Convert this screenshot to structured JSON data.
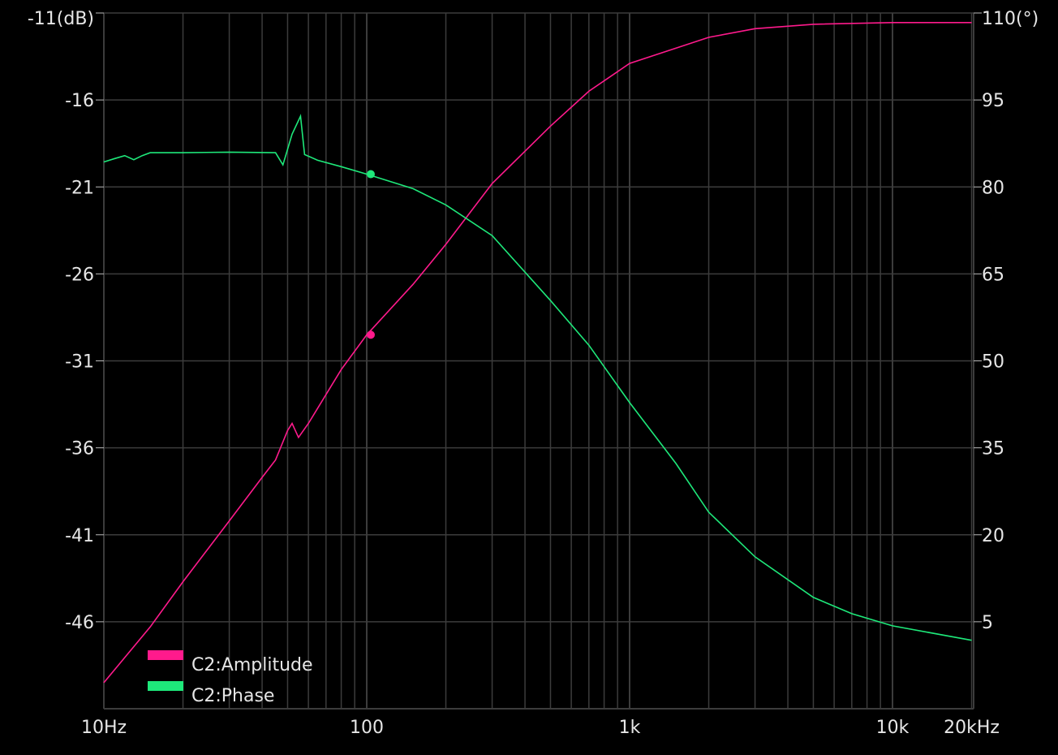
{
  "chart_data": {
    "type": "line",
    "title": "",
    "x_scale": "log",
    "xlim": [
      10,
      20000
    ],
    "x_ticks": [
      {
        "value": 10,
        "label": "10Hz"
      },
      {
        "value": 100,
        "label": "100"
      },
      {
        "value": 1000,
        "label": "1k"
      },
      {
        "value": 10000,
        "label": "10k"
      },
      {
        "value": 20000,
        "label": "20kHz"
      }
    ],
    "y_left": {
      "ylim": [
        -51,
        -11
      ],
      "ticks": [
        {
          "value": -11,
          "label": "-11(dB)"
        },
        {
          "value": -16,
          "label": "-16"
        },
        {
          "value": -21,
          "label": "-21"
        },
        {
          "value": -26,
          "label": "-26"
        },
        {
          "value": -31,
          "label": "-31"
        },
        {
          "value": -36,
          "label": "-36"
        },
        {
          "value": -41,
          "label": "-41"
        },
        {
          "value": -46,
          "label": "-46"
        }
      ]
    },
    "y_right": {
      "ylim": [
        -10,
        110
      ],
      "ticks": [
        {
          "value": 110,
          "label": "110(°)"
        },
        {
          "value": 95,
          "label": "95"
        },
        {
          "value": 80,
          "label": "80"
        },
        {
          "value": 65,
          "label": "65"
        },
        {
          "value": 50,
          "label": "50"
        },
        {
          "value": 35,
          "label": "35"
        },
        {
          "value": 20,
          "label": "20"
        },
        {
          "value": 5,
          "label": "5"
        }
      ]
    },
    "grid": true,
    "legend_placement": "bottom-left",
    "series": [
      {
        "name": "C2:Amplitude",
        "axis": "left",
        "color": "#ff1a8c",
        "x": [
          10,
          15,
          20,
          30,
          40,
          45,
          50,
          52,
          55,
          60,
          80,
          100,
          150,
          200,
          300,
          500,
          700,
          1000,
          2000,
          3000,
          5000,
          10000,
          20000
        ],
        "y": [
          -49.5,
          -46.3,
          -43.7,
          -40.2,
          -37.7,
          -36.7,
          -35.0,
          -34.6,
          -35.4,
          -34.6,
          -31.5,
          -29.5,
          -26.6,
          -24.3,
          -20.8,
          -17.5,
          -15.5,
          -13.9,
          -12.4,
          -11.9,
          -11.65,
          -11.55,
          -11.55
        ],
        "marker": {
          "x": 103.6,
          "y": -29.5
        }
      },
      {
        "name": "C2:Phase",
        "axis": "right",
        "color": "#1ee87a",
        "x": [
          10,
          11,
          12,
          13,
          14,
          15,
          20,
          30,
          45,
          48,
          52,
          56,
          58,
          65,
          80,
          100,
          150,
          200,
          300,
          500,
          700,
          1000,
          1500,
          2000,
          3000,
          5000,
          7000,
          10000,
          20000
        ],
        "y": [
          84.3,
          84.9,
          85.4,
          84.7,
          85.4,
          85.9,
          85.9,
          86.0,
          85.9,
          83.8,
          89.1,
          92.2,
          85.6,
          84.6,
          83.5,
          82.2,
          79.7,
          76.9,
          71.6,
          60.4,
          52.7,
          42.8,
          32.3,
          23.9,
          16.2,
          9.2,
          6.4,
          4.3,
          1.8
        ],
        "marker": {
          "x": 103.6,
          "y": 82.2
        }
      }
    ]
  }
}
